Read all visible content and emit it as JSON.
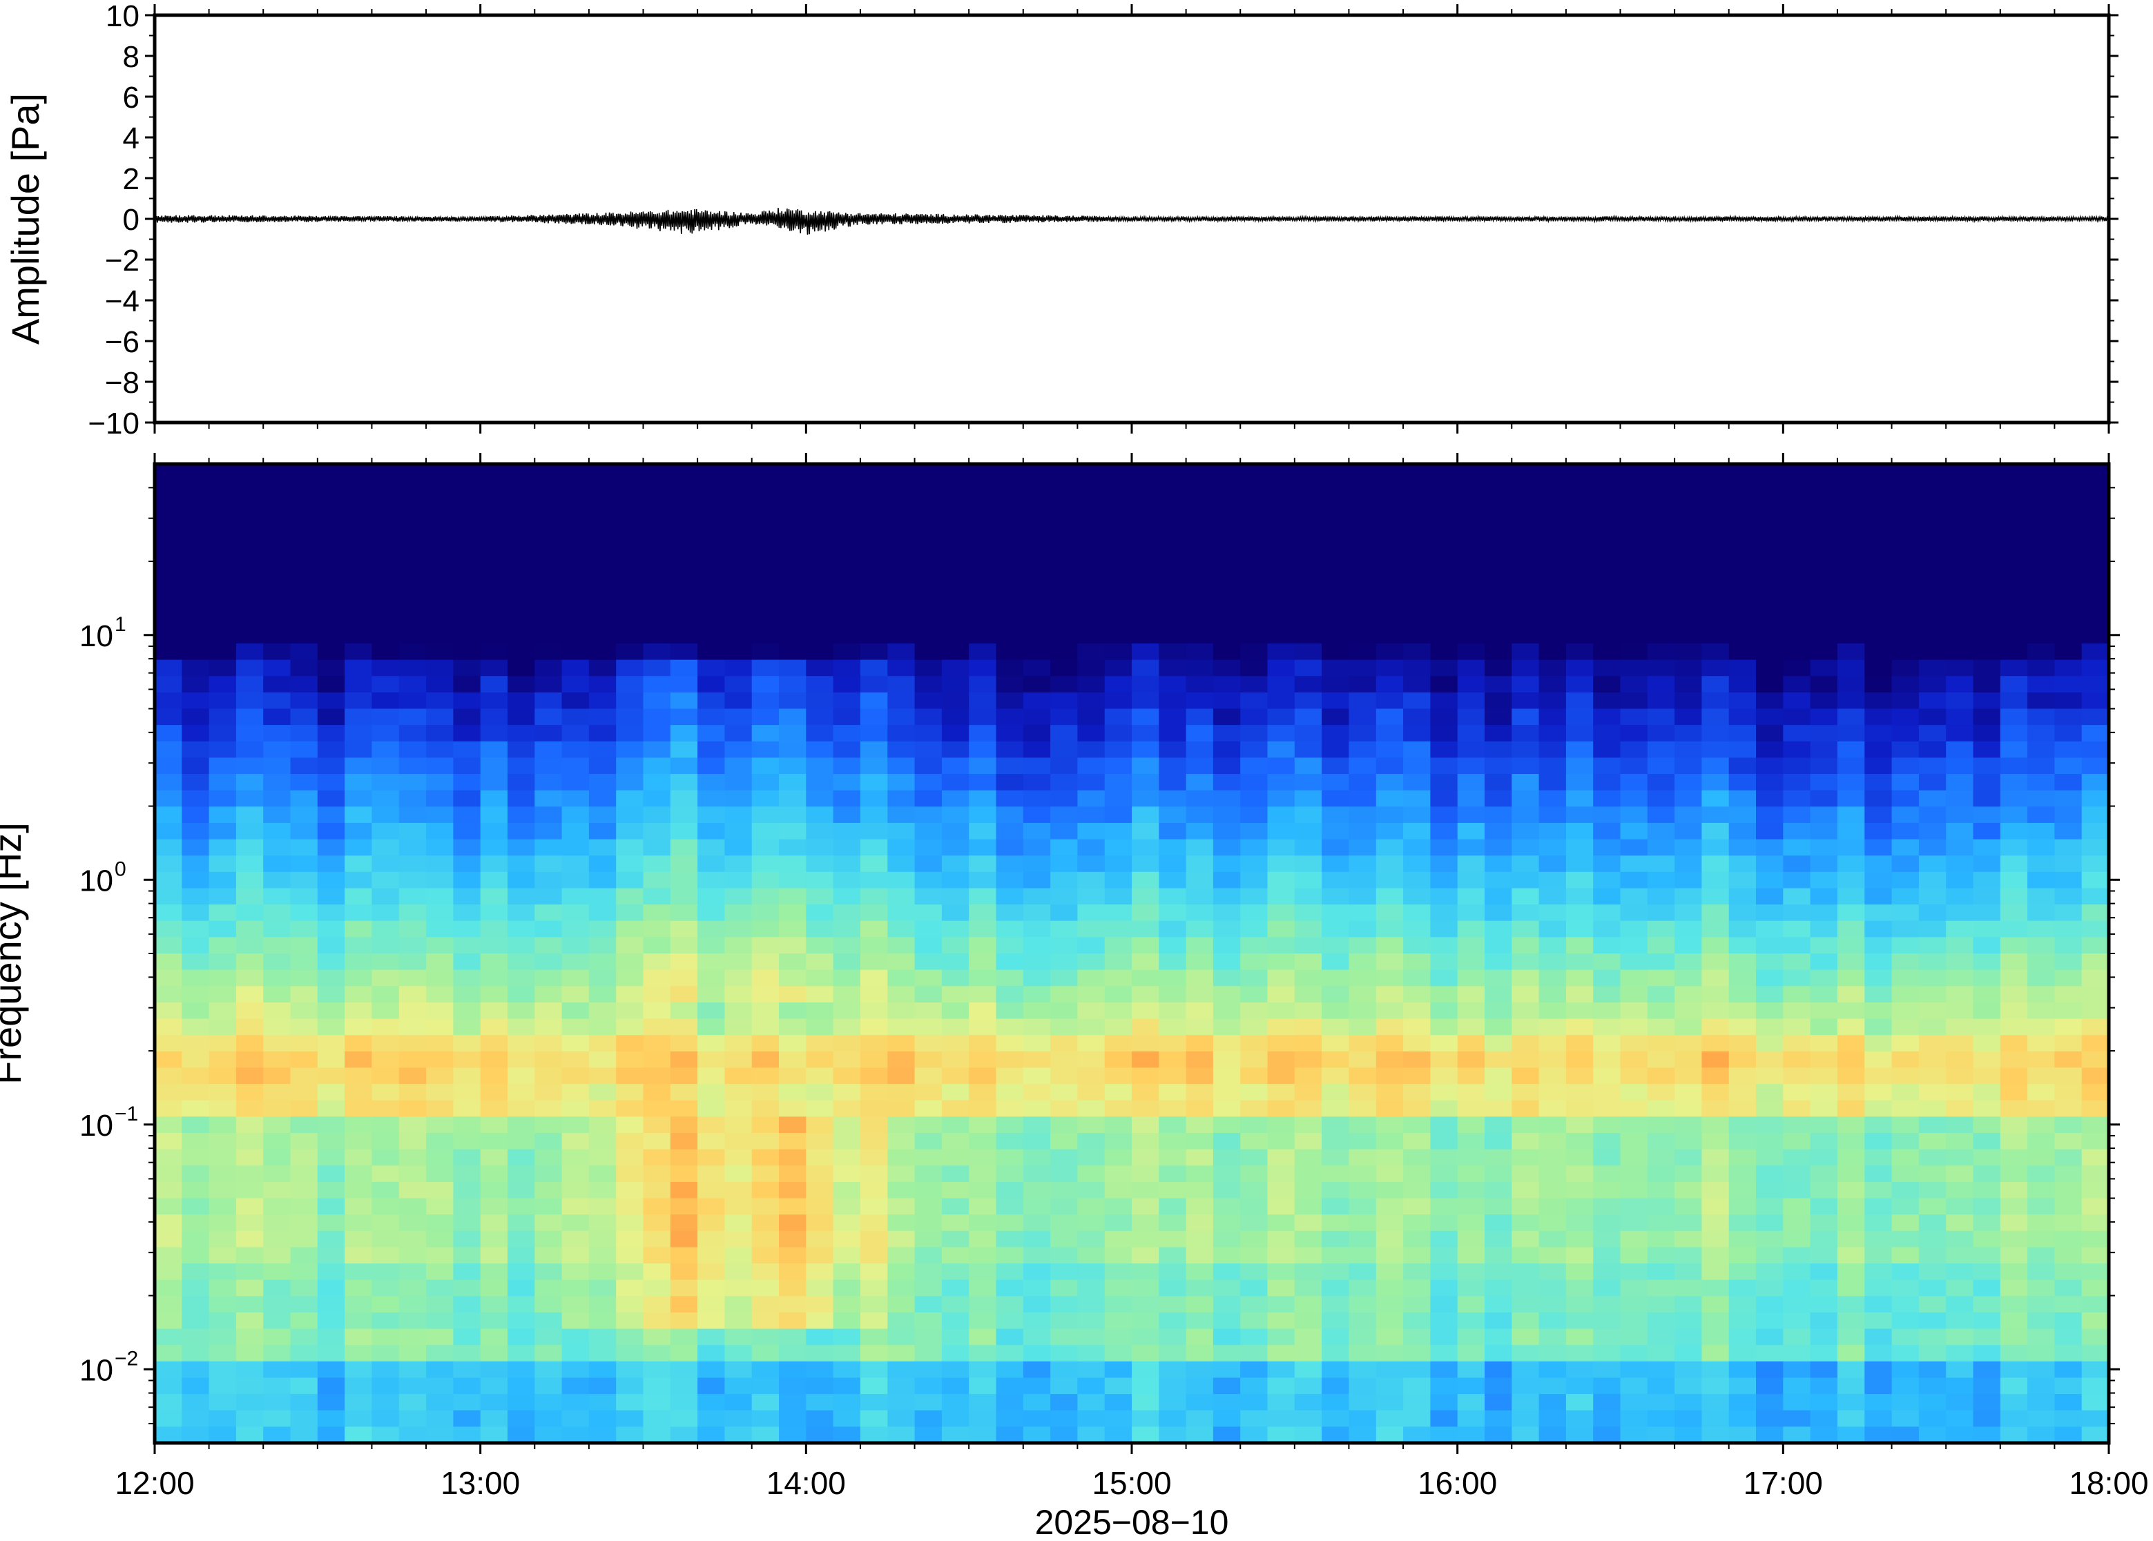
{
  "chart_data": [
    {
      "type": "line",
      "panel": "waveform",
      "ylabel": "Amplitude [Pa]",
      "ylim": [
        -10,
        10
      ],
      "yticks": [
        "10",
        "8",
        "6",
        "4",
        "2",
        "0",
        "−2",
        "−4",
        "−6",
        "−8",
        "−10"
      ],
      "ytick_values": [
        10,
        8,
        6,
        4,
        2,
        0,
        -2,
        -4,
        -6,
        -8,
        -10
      ],
      "xlim": [
        "2025-08-10 12:00",
        "2025-08-10 18:00"
      ],
      "series_envelope": [
        {
          "time": "12:00",
          "min": -0.2,
          "max": 0.2
        },
        {
          "time": "12:30",
          "min": -0.15,
          "max": 0.15
        },
        {
          "time": "13:00",
          "min": -0.12,
          "max": 0.12
        },
        {
          "time": "13:22",
          "min": -0.3,
          "max": 0.3
        },
        {
          "time": "13:39",
          "min": -0.8,
          "max": 0.5
        },
        {
          "time": "13:50",
          "min": -0.25,
          "max": 0.3
        },
        {
          "time": "13:56",
          "min": -0.6,
          "max": 0.6
        },
        {
          "time": "14:00",
          "min": -0.8,
          "max": 0.45
        },
        {
          "time": "14:10",
          "min": -0.3,
          "max": 0.3
        },
        {
          "time": "15:00",
          "min": -0.12,
          "max": 0.12
        },
        {
          "time": "16:00",
          "min": -0.12,
          "max": 0.12
        },
        {
          "time": "17:00",
          "min": -0.12,
          "max": 0.12
        },
        {
          "time": "18:00",
          "min": -0.12,
          "max": 0.12
        }
      ]
    },
    {
      "type": "heatmap",
      "panel": "spectrogram",
      "ylabel": "Frequency [Hz]",
      "yscale": "log",
      "ylim": [
        0.005,
        50
      ],
      "yticks": [
        {
          "base": "10",
          "exp": "1",
          "value": 10
        },
        {
          "base": "10",
          "exp": "0",
          "value": 1
        },
        {
          "base": "10",
          "exp": "−1",
          "value": 0.1
        },
        {
          "base": "10",
          "exp": "−2",
          "value": 0.01
        }
      ],
      "xlabel": "2025−08−10",
      "xticks": [
        "12:00",
        "13:00",
        "14:00",
        "15:00",
        "16:00",
        "17:00",
        "18:00"
      ],
      "xlim": [
        "12:00",
        "18:00"
      ],
      "colormap": "jet",
      "colormap_colors": [
        "#0a0073",
        "#0d1ec8",
        "#1a66ff",
        "#2ab8ff",
        "#59e6e6",
        "#9ef0a0",
        "#e8f28a",
        "#ffd060",
        "#ff8c3c",
        "#e84020"
      ],
      "features": {
        "dark_band_above_hz": 8,
        "peak_band_hz": 0.2,
        "low_freq_energy_hz": [
          0.015,
          0.1
        ],
        "active_period": [
          "13:15",
          "14:15"
        ],
        "active_peaks": [
          "13:40",
          "13:58"
        ]
      }
    }
  ]
}
